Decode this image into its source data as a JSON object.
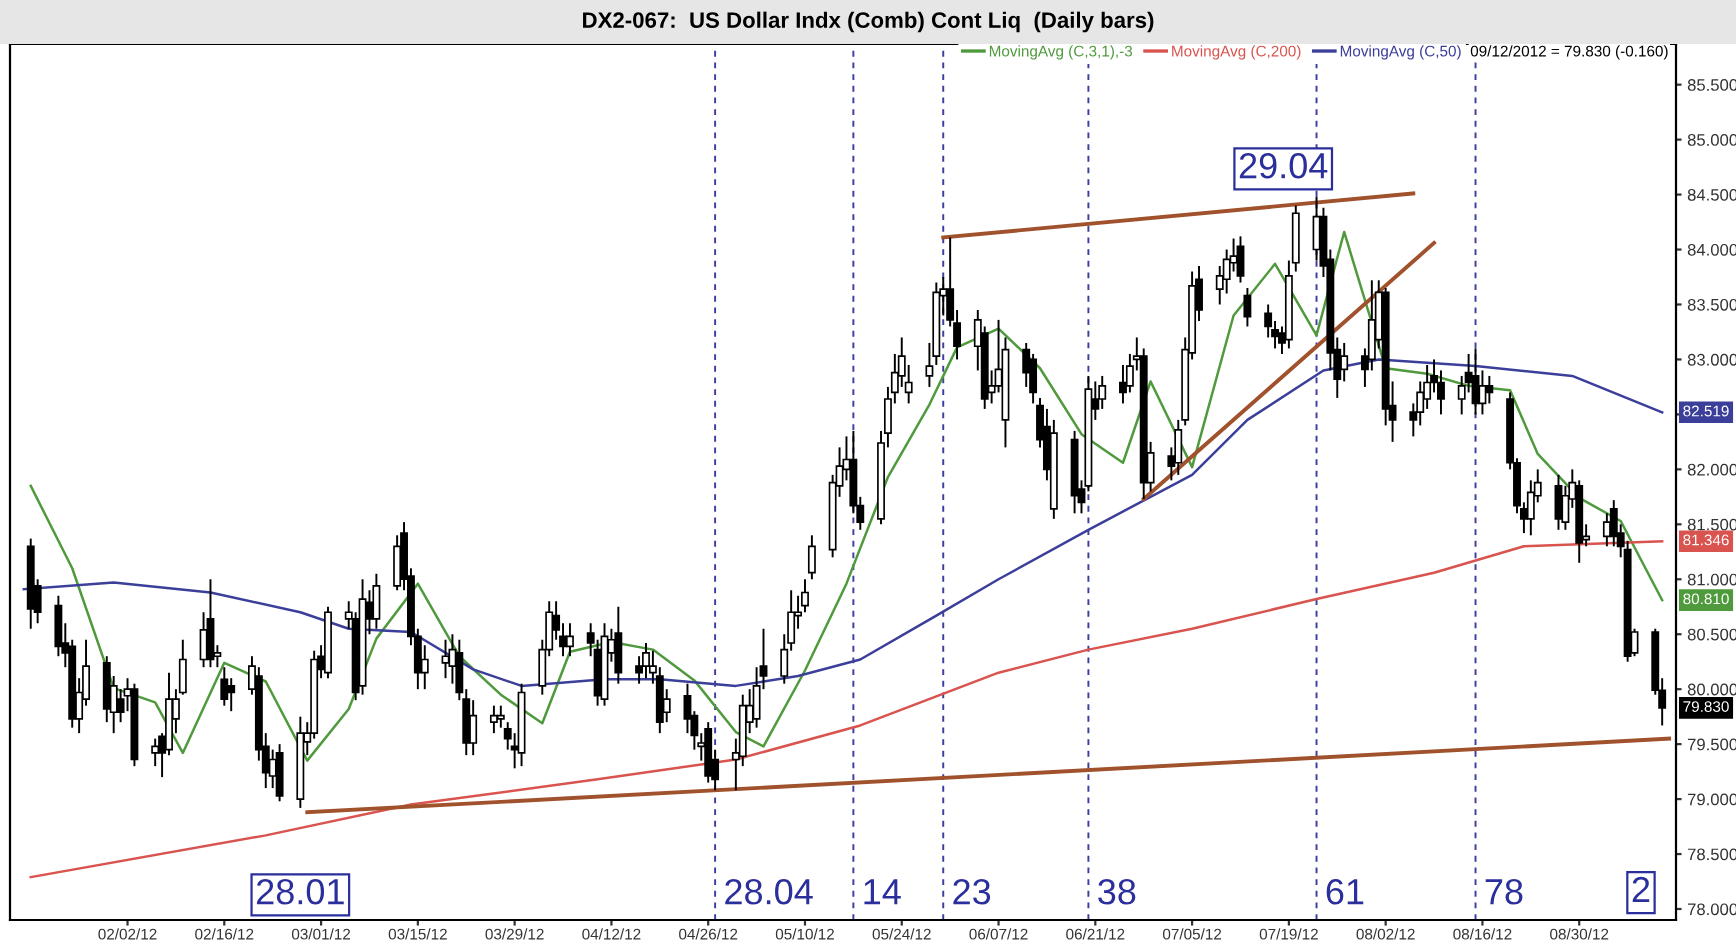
{
  "chart_data": {
    "type": "candlestick",
    "title": "DX2-067:  US Dollar Indx (Comb) Cont Liq  (Daily bars)",
    "x": [
      "2012-01-19",
      "2012-01-20",
      "2012-01-23",
      "2012-01-24",
      "2012-01-25",
      "2012-01-26",
      "2012-01-27",
      "2012-01-30",
      "2012-01-31",
      "2012-02-01",
      "2012-02-02",
      "2012-02-03",
      "2012-02-06",
      "2012-02-07",
      "2012-02-08",
      "2012-02-09",
      "2012-02-10",
      "2012-02-13",
      "2012-02-14",
      "2012-02-15",
      "2012-02-16",
      "2012-02-17",
      "2012-02-20",
      "2012-02-21",
      "2012-02-22",
      "2012-02-23",
      "2012-02-24",
      "2012-02-27",
      "2012-02-28",
      "2012-02-29",
      "2012-03-01",
      "2012-03-02",
      "2012-03-05",
      "2012-03-06",
      "2012-03-07",
      "2012-03-08",
      "2012-03-09",
      "2012-03-12",
      "2012-03-13",
      "2012-03-14",
      "2012-03-15",
      "2012-03-16",
      "2012-03-19",
      "2012-03-20",
      "2012-03-21",
      "2012-03-22",
      "2012-03-23",
      "2012-03-26",
      "2012-03-27",
      "2012-03-28",
      "2012-03-29",
      "2012-03-30",
      "2012-04-02",
      "2012-04-03",
      "2012-04-04",
      "2012-04-05",
      "2012-04-06",
      "2012-04-09",
      "2012-04-10",
      "2012-04-11",
      "2012-04-12",
      "2012-04-13",
      "2012-04-16",
      "2012-04-17",
      "2012-04-18",
      "2012-04-19",
      "2012-04-20",
      "2012-04-23",
      "2012-04-24",
      "2012-04-25",
      "2012-04-26",
      "2012-04-27",
      "2012-04-30",
      "2012-05-01",
      "2012-05-02",
      "2012-05-03",
      "2012-05-04",
      "2012-05-07",
      "2012-05-08",
      "2012-05-09",
      "2012-05-10",
      "2012-05-11",
      "2012-05-14",
      "2012-05-15",
      "2012-05-16",
      "2012-05-17",
      "2012-05-18",
      "2012-05-21",
      "2012-05-22",
      "2012-05-23",
      "2012-05-24",
      "2012-05-25",
      "2012-05-28",
      "2012-05-29",
      "2012-05-30",
      "2012-05-31",
      "2012-06-01",
      "2012-06-04",
      "2012-06-05",
      "2012-06-06",
      "2012-06-07",
      "2012-06-08",
      "2012-06-11",
      "2012-06-12",
      "2012-06-13",
      "2012-06-14",
      "2012-06-15",
      "2012-06-18",
      "2012-06-19",
      "2012-06-20",
      "2012-06-21",
      "2012-06-22",
      "2012-06-25",
      "2012-06-26",
      "2012-06-27",
      "2012-06-28",
      "2012-06-29",
      "2012-07-02",
      "2012-07-03",
      "2012-07-04",
      "2012-07-05",
      "2012-07-06",
      "2012-07-09",
      "2012-07-10",
      "2012-07-11",
      "2012-07-12",
      "2012-07-13",
      "2012-07-16",
      "2012-07-17",
      "2012-07-18",
      "2012-07-19",
      "2012-07-20",
      "2012-07-23",
      "2012-07-24",
      "2012-07-25",
      "2012-07-26",
      "2012-07-27",
      "2012-07-30",
      "2012-07-31",
      "2012-08-01",
      "2012-08-02",
      "2012-08-03",
      "2012-08-06",
      "2012-08-07",
      "2012-08-08",
      "2012-08-09",
      "2012-08-10",
      "2012-08-13",
      "2012-08-14",
      "2012-08-15",
      "2012-08-16",
      "2012-08-17",
      "2012-08-20",
      "2012-08-21",
      "2012-08-22",
      "2012-08-23",
      "2012-08-24",
      "2012-08-27",
      "2012-08-28",
      "2012-08-29",
      "2012-08-30",
      "2012-08-31",
      "2012-09-03",
      "2012-09-04",
      "2012-09-05",
      "2012-09-06",
      "2012-09-07",
      "2012-09-10",
      "2012-09-11"
    ],
    "ohlc": [
      [
        81.3,
        81.37,
        80.55,
        80.73
      ],
      [
        80.94,
        81.0,
        80.6,
        80.7
      ],
      [
        80.76,
        80.85,
        80.3,
        80.39
      ],
      [
        80.42,
        80.6,
        80.2,
        80.33
      ],
      [
        80.39,
        80.45,
        79.65,
        79.73
      ],
      [
        79.73,
        80.1,
        79.6,
        79.97
      ],
      [
        79.91,
        80.45,
        79.85,
        80.21
      ],
      [
        80.24,
        80.3,
        79.7,
        79.82
      ],
      [
        79.79,
        80.12,
        79.6,
        80.03
      ],
      [
        79.91,
        80.0,
        79.7,
        79.79
      ],
      [
        79.94,
        80.1,
        79.8,
        80.0
      ],
      [
        80.0,
        80.05,
        79.3,
        79.36
      ],
      [
        79.42,
        79.55,
        79.3,
        79.48
      ],
      [
        79.57,
        79.6,
        79.2,
        79.42
      ],
      [
        79.45,
        80.15,
        79.4,
        79.91
      ],
      [
        79.73,
        80.0,
        79.6,
        79.91
      ],
      [
        79.97,
        80.45,
        79.95,
        80.27
      ],
      [
        80.27,
        80.7,
        80.2,
        80.54
      ],
      [
        80.64,
        81.0,
        80.2,
        80.27
      ],
      [
        80.3,
        80.4,
        80.2,
        80.33
      ],
      [
        80.09,
        80.2,
        79.85,
        79.91
      ],
      [
        80.03,
        80.1,
        79.8,
        79.97
      ],
      [
        80.0,
        80.3,
        79.95,
        80.21
      ],
      [
        80.12,
        80.2,
        79.35,
        79.45
      ],
      [
        79.48,
        79.6,
        79.1,
        79.24
      ],
      [
        79.21,
        79.45,
        79.1,
        79.36
      ],
      [
        79.42,
        79.5,
        78.98,
        79.03
      ],
      [
        79.0,
        79.75,
        78.92,
        79.6
      ],
      [
        79.52,
        79.7,
        79.4,
        79.6
      ],
      [
        79.6,
        80.35,
        79.55,
        80.27
      ],
      [
        80.3,
        80.4,
        80.1,
        80.18
      ],
      [
        80.15,
        80.75,
        80.1,
        80.7
      ],
      [
        80.64,
        80.8,
        80.55,
        80.7
      ],
      [
        80.64,
        80.7,
        79.9,
        79.97
      ],
      [
        80.03,
        81.0,
        79.95,
        80.82
      ],
      [
        80.79,
        80.9,
        80.5,
        80.64
      ],
      [
        80.64,
        81.05,
        80.55,
        80.94
      ],
      [
        80.94,
        81.4,
        80.9,
        81.3
      ],
      [
        81.42,
        81.52,
        80.9,
        81.0
      ],
      [
        81.03,
        81.1,
        80.4,
        80.48
      ],
      [
        80.48,
        80.55,
        80.0,
        80.15
      ],
      [
        80.15,
        80.4,
        80.0,
        80.27
      ],
      [
        80.24,
        80.45,
        80.1,
        80.3
      ],
      [
        80.21,
        80.5,
        80.05,
        80.36
      ],
      [
        80.33,
        80.45,
        79.9,
        79.97
      ],
      [
        79.91,
        80.0,
        79.4,
        79.51
      ],
      [
        79.51,
        79.9,
        79.4,
        79.76
      ],
      [
        79.7,
        79.85,
        79.6,
        79.76
      ],
      [
        79.73,
        79.85,
        79.65,
        79.76
      ],
      [
        79.64,
        79.7,
        79.45,
        79.55
      ],
      [
        79.48,
        79.6,
        79.28,
        79.45
      ],
      [
        79.42,
        80.05,
        79.3,
        79.97
      ],
      [
        80.03,
        80.45,
        79.95,
        80.36
      ],
      [
        80.36,
        80.8,
        80.3,
        80.7
      ],
      [
        80.67,
        80.8,
        80.45,
        80.54
      ],
      [
        80.48,
        80.6,
        80.3,
        80.39
      ],
      [
        80.39,
        80.6,
        80.3,
        80.48
      ],
      [
        80.51,
        80.6,
        80.3,
        80.42
      ],
      [
        80.36,
        80.45,
        79.85,
        79.94
      ],
      [
        79.91,
        80.6,
        79.85,
        80.48
      ],
      [
        80.33,
        80.55,
        80.25,
        80.45
      ],
      [
        80.51,
        80.75,
        80.05,
        80.15
      ],
      [
        80.21,
        80.3,
        80.05,
        80.15
      ],
      [
        80.21,
        80.42,
        80.1,
        80.33
      ],
      [
        80.15,
        80.35,
        80.05,
        80.21
      ],
      [
        80.12,
        80.2,
        79.6,
        79.7
      ],
      [
        79.79,
        80.0,
        79.7,
        79.91
      ],
      [
        79.94,
        80.05,
        79.6,
        79.73
      ],
      [
        79.76,
        79.8,
        79.45,
        79.58
      ],
      [
        79.48,
        79.6,
        79.35,
        79.51
      ],
      [
        79.64,
        79.7,
        79.15,
        79.21
      ],
      [
        79.36,
        79.45,
        79.08,
        79.18
      ],
      [
        79.36,
        79.55,
        79.08,
        79.42
      ],
      [
        79.39,
        79.95,
        79.3,
        79.85
      ],
      [
        79.7,
        80.0,
        79.6,
        79.85
      ],
      [
        79.73,
        80.2,
        79.65,
        80.03
      ],
      [
        80.21,
        80.55,
        80.0,
        80.12
      ],
      [
        80.12,
        80.5,
        80.05,
        80.36
      ],
      [
        80.42,
        80.9,
        80.35,
        80.7
      ],
      [
        80.67,
        80.85,
        80.55,
        80.7
      ],
      [
        80.76,
        81.0,
        80.7,
        80.88
      ],
      [
        81.06,
        81.4,
        81.0,
        81.3
      ],
      [
        81.27,
        81.95,
        81.2,
        81.88
      ],
      [
        81.85,
        82.2,
        81.75,
        82.03
      ],
      [
        82.0,
        82.3,
        81.9,
        82.09
      ],
      [
        82.09,
        82.35,
        81.6,
        81.67
      ],
      [
        81.67,
        81.75,
        81.45,
        81.52
      ],
      [
        81.55,
        82.35,
        81.5,
        82.24
      ],
      [
        82.33,
        82.75,
        82.2,
        82.64
      ],
      [
        82.7,
        83.05,
        82.6,
        82.88
      ],
      [
        82.85,
        83.2,
        82.75,
        83.03
      ],
      [
        82.7,
        82.95,
        82.6,
        82.79
      ],
      [
        82.85,
        83.15,
        82.75,
        82.94
      ],
      [
        83.03,
        83.7,
        82.95,
        83.61
      ],
      [
        83.58,
        83.75,
        83.4,
        83.64
      ],
      [
        83.64,
        84.11,
        83.3,
        83.36
      ],
      [
        83.33,
        83.45,
        83.0,
        83.12
      ],
      [
        83.12,
        83.45,
        82.9,
        83.36
      ],
      [
        83.24,
        83.3,
        82.55,
        82.64
      ],
      [
        82.7,
        82.9,
        82.6,
        82.76
      ],
      [
        82.76,
        83.36,
        82.7,
        82.91
      ],
      [
        82.45,
        83.2,
        82.2,
        83.09
      ],
      [
        83.09,
        83.15,
        82.75,
        82.88
      ],
      [
        83.0,
        83.05,
        82.6,
        82.7
      ],
      [
        82.58,
        82.65,
        82.2,
        82.27
      ],
      [
        82.39,
        82.55,
        81.9,
        82.0
      ],
      [
        81.64,
        82.45,
        81.55,
        82.33
      ],
      [
        82.27,
        82.35,
        81.6,
        81.76
      ],
      [
        81.82,
        81.9,
        81.6,
        81.7
      ],
      [
        81.85,
        82.85,
        81.8,
        82.73
      ],
      [
        82.64,
        82.8,
        82.45,
        82.55
      ],
      [
        82.64,
        82.85,
        82.55,
        82.76
      ],
      [
        82.79,
        82.95,
        82.6,
        82.7
      ],
      [
        82.76,
        83.05,
        82.7,
        82.94
      ],
      [
        83.0,
        83.2,
        82.9,
        83.03
      ],
      [
        83.03,
        83.1,
        81.73,
        81.88
      ],
      [
        81.88,
        82.25,
        81.8,
        82.15
      ],
      [
        82.12,
        82.2,
        81.9,
        82.03
      ],
      [
        82.06,
        82.45,
        81.95,
        82.36
      ],
      [
        82.45,
        83.2,
        82.4,
        83.09
      ],
      [
        83.06,
        83.8,
        83.0,
        83.67
      ],
      [
        83.73,
        83.85,
        83.35,
        83.45
      ],
      [
        83.64,
        83.85,
        83.5,
        83.76
      ],
      [
        83.73,
        84.0,
        83.6,
        83.91
      ],
      [
        83.88,
        84.1,
        83.8,
        83.94
      ],
      [
        84.03,
        84.12,
        83.7,
        83.76
      ],
      [
        83.58,
        83.65,
        83.3,
        83.39
      ],
      [
        83.42,
        83.5,
        83.2,
        83.3
      ],
      [
        83.27,
        83.35,
        83.1,
        83.21
      ],
      [
        83.24,
        83.3,
        83.05,
        83.15
      ],
      [
        83.18,
        83.9,
        83.1,
        83.76
      ],
      [
        83.88,
        84.4,
        83.8,
        84.33
      ],
      [
        84.0,
        84.48,
        83.9,
        84.3
      ],
      [
        84.3,
        84.38,
        83.75,
        83.85
      ],
      [
        83.91,
        84.0,
        82.9,
        83.06
      ],
      [
        83.09,
        83.2,
        82.65,
        82.82
      ],
      [
        82.91,
        83.15,
        82.8,
        83.03
      ],
      [
        83.03,
        83.1,
        82.75,
        82.91
      ],
      [
        83.0,
        83.72,
        82.9,
        83.36
      ],
      [
        83.18,
        83.72,
        83.1,
        83.61
      ],
      [
        83.61,
        83.65,
        82.4,
        82.55
      ],
      [
        82.58,
        82.8,
        82.25,
        82.45
      ],
      [
        82.52,
        82.6,
        82.3,
        82.45
      ],
      [
        82.52,
        82.8,
        82.4,
        82.7
      ],
      [
        82.64,
        82.95,
        82.55,
        82.79
      ],
      [
        82.85,
        83.0,
        82.7,
        82.79
      ],
      [
        82.79,
        82.9,
        82.5,
        82.64
      ],
      [
        82.64,
        82.85,
        82.5,
        82.76
      ],
      [
        82.88,
        83.05,
        82.7,
        82.79
      ],
      [
        82.85,
        83.1,
        82.5,
        82.6
      ],
      [
        82.6,
        82.9,
        82.5,
        82.76
      ],
      [
        82.76,
        82.85,
        82.6,
        82.7
      ],
      [
        82.64,
        82.7,
        82.0,
        82.06
      ],
      [
        82.06,
        82.1,
        81.6,
        81.67
      ],
      [
        81.64,
        81.7,
        81.42,
        81.55
      ],
      [
        81.55,
        81.9,
        81.4,
        81.79
      ],
      [
        81.76,
        82.0,
        81.7,
        81.88
      ],
      [
        81.85,
        81.95,
        81.45,
        81.55
      ],
      [
        81.52,
        81.85,
        81.45,
        81.76
      ],
      [
        81.73,
        82.0,
        81.65,
        81.88
      ],
      [
        81.85,
        81.9,
        81.15,
        81.33
      ],
      [
        81.36,
        81.5,
        81.3,
        81.39
      ],
      [
        81.39,
        81.6,
        81.3,
        81.52
      ],
      [
        81.64,
        81.72,
        81.3,
        81.39
      ],
      [
        81.42,
        81.5,
        81.2,
        81.3
      ],
      [
        81.27,
        81.35,
        80.25,
        80.3
      ],
      [
        80.33,
        80.55,
        80.3,
        80.52
      ],
      [
        80.52,
        80.55,
        79.95,
        79.99
      ],
      [
        79.99,
        80.1,
        79.67,
        79.83
      ]
    ],
    "series": [
      {
        "type": "line",
        "name": "MovingAvg (C,3,1),-3",
        "color": "#4f9a3c",
        "x": [
          "2012-01-19",
          "2012-01-25",
          "2012-01-31",
          "2012-02-06",
          "2012-02-10",
          "2012-02-16",
          "2012-02-22",
          "2012-02-28",
          "2012-03-05",
          "2012-03-09",
          "2012-03-15",
          "2012-03-21",
          "2012-03-27",
          "2012-04-02",
          "2012-04-06",
          "2012-04-12",
          "2012-04-18",
          "2012-04-24",
          "2012-04-30",
          "2012-05-04",
          "2012-05-10",
          "2012-05-16",
          "2012-05-22",
          "2012-05-28",
          "2012-06-01",
          "2012-06-07",
          "2012-06-13",
          "2012-06-19",
          "2012-06-25",
          "2012-06-29",
          "2012-07-05",
          "2012-07-11",
          "2012-07-17",
          "2012-07-23",
          "2012-07-27",
          "2012-08-02",
          "2012-08-08",
          "2012-08-14",
          "2012-08-20",
          "2012-08-24",
          "2012-08-30",
          "2012-09-05",
          "2012-09-11"
        ],
        "values": [
          81.85,
          81.1,
          80.01,
          79.88,
          79.42,
          80.24,
          80.07,
          79.35,
          79.82,
          80.46,
          80.96,
          80.3,
          79.95,
          79.69,
          80.34,
          80.43,
          80.36,
          80.08,
          79.61,
          79.48,
          80.17,
          80.96,
          81.93,
          82.59,
          83.11,
          83.28,
          82.92,
          82.32,
          82.06,
          82.8,
          82.02,
          83.4,
          83.87,
          83.22,
          84.16,
          82.92,
          82.87,
          82.76,
          82.72,
          82.14,
          81.74,
          81.53,
          80.81
        ],
        "value_labels": [
          null,
          null,
          null,
          null,
          null,
          null,
          null,
          null,
          null,
          null,
          null,
          null,
          null,
          null,
          null,
          null,
          null,
          null,
          null,
          null,
          null,
          null,
          null,
          null,
          null,
          null,
          null,
          null,
          null,
          null,
          null,
          null,
          null,
          null,
          null,
          null,
          null,
          null,
          null,
          null,
          null,
          null,
          "80.810"
        ]
      },
      {
        "type": "line",
        "name": "MovingAvg (C,200)",
        "color": "#d9534f",
        "x": [
          "2012-01-19",
          "2012-02-22",
          "2012-03-14",
          "2012-04-10",
          "2012-04-30",
          "2012-05-18",
          "2012-06-07",
          "2012-06-20",
          "2012-07-05",
          "2012-07-23",
          "2012-08-09",
          "2012-08-22",
          "2012-09-11"
        ],
        "values": [
          78.29,
          78.67,
          78.95,
          79.18,
          79.36,
          79.67,
          80.15,
          80.36,
          80.55,
          80.82,
          81.06,
          81.3,
          81.346
        ],
        "value_labels": [
          null,
          null,
          null,
          null,
          null,
          null,
          null,
          null,
          null,
          null,
          null,
          null,
          "81.346"
        ]
      },
      {
        "type": "line",
        "name": "MovingAvg (C,50)",
        "color": "#3b3f9a",
        "x": [
          "2012-01-18",
          "2012-01-31",
          "2012-02-14",
          "2012-02-27",
          "2012-03-05",
          "2012-03-14",
          "2012-03-23",
          "2012-03-30",
          "2012-04-11",
          "2012-04-19",
          "2012-04-30",
          "2012-05-09",
          "2012-05-18",
          "2012-05-29",
          "2012-06-07",
          "2012-06-20",
          "2012-07-05",
          "2012-07-13",
          "2012-07-24",
          "2012-08-01",
          "2012-08-15",
          "2012-08-29",
          "2012-09-11"
        ],
        "values": [
          80.91,
          80.97,
          80.88,
          80.7,
          80.55,
          80.52,
          80.18,
          80.03,
          80.09,
          80.09,
          80.03,
          80.12,
          80.27,
          80.67,
          81.0,
          81.45,
          81.95,
          82.45,
          82.9,
          83.0,
          82.94,
          82.85,
          82.519
        ],
        "value_labels": [
          null,
          null,
          null,
          null,
          null,
          null,
          null,
          null,
          null,
          null,
          null,
          null,
          null,
          null,
          null,
          null,
          null,
          null,
          null,
          null,
          null,
          null,
          "82.519"
        ]
      },
      {
        "type": "line",
        "color": "#a0522d",
        "x": [
          "2012-02-28",
          "2012-09-12"
        ],
        "values": [
          78.88,
          79.55
        ]
      },
      {
        "type": "line",
        "color": "#a0522d",
        "x": [
          "2012-05-30",
          "2012-08-06"
        ],
        "values": [
          84.11,
          84.51
        ]
      },
      {
        "type": "line",
        "color": "#a0522d",
        "x": [
          "2012-06-28",
          "2012-08-09"
        ],
        "values": [
          81.73,
          84.06
        ]
      }
    ],
    "ref_lines": [
      {
        "axis": "x",
        "value": "2012-04-27",
        "color": "#3b3fa0",
        "line_style": "dashed",
        "label": "28.04"
      },
      {
        "axis": "x",
        "value": "2012-05-17",
        "color": "#3b3fa0",
        "line_style": "dashed",
        "label": "14"
      },
      {
        "axis": "x",
        "value": "2012-05-30",
        "color": "#3b3fa0",
        "line_style": "dashed",
        "label": "23"
      },
      {
        "axis": "x",
        "value": "2012-06-20",
        "color": "#3b3fa0",
        "line_style": "dashed",
        "label": "38"
      },
      {
        "axis": "x",
        "value": "2012-07-23",
        "color": "#3b3fa0",
        "line_style": "dashed",
        "label": "61"
      },
      {
        "axis": "x",
        "value": "2012-08-15",
        "color": "#3b3fa0",
        "line_style": "dashed",
        "label": "78"
      }
    ],
    "annotations": [
      "09/12/2012 = 79.830 (-0.160)",
      {
        "text": "79.830",
        "x": "2012-09-11",
        "y": 79.83
      },
      {
        "text": "28.01",
        "x": "2012-02-27",
        "y": 78.92
      },
      "2",
      {
        "text": "29.04",
        "x": "2012-07-23",
        "y": 84.48
      }
    ],
    "xlim": [
      "2012-01-16",
      "2012-09-13"
    ],
    "xticks": [
      {
        "value": "2012-02-02",
        "label": "02/02/12"
      },
      {
        "value": "2012-02-16",
        "label": "02/16/12"
      },
      {
        "value": "2012-03-01",
        "label": "03/01/12"
      },
      {
        "value": "2012-03-15",
        "label": "03/15/12"
      },
      {
        "value": "2012-03-29",
        "label": "03/29/12"
      },
      {
        "value": "2012-04-12",
        "label": "04/12/12"
      },
      {
        "value": "2012-04-26",
        "label": "04/26/12"
      },
      {
        "value": "2012-05-10",
        "label": "05/10/12"
      },
      {
        "value": "2012-05-24",
        "label": "05/24/12"
      },
      {
        "value": "2012-06-07",
        "label": "06/07/12"
      },
      {
        "value": "2012-06-21",
        "label": "06/21/12"
      },
      {
        "value": "2012-07-05",
        "label": "07/05/12"
      },
      {
        "value": "2012-07-19",
        "label": "07/19/12"
      },
      {
        "value": "2012-08-02",
        "label": "08/02/12"
      },
      {
        "value": "2012-08-16",
        "label": "08/16/12"
      },
      {
        "value": "2012-08-30",
        "label": "08/30/12"
      }
    ],
    "ylim": [
      77.9,
      85.87
    ],
    "yticks": [
      {
        "value": 78,
        "label": "78.000"
      },
      {
        "value": 78.5,
        "label": "78.500"
      },
      {
        "value": 79,
        "label": "79.000"
      },
      {
        "value": 79.5,
        "label": "79.500"
      },
      {
        "value": 80,
        "label": "80.000"
      },
      {
        "value": 80.5,
        "label": "80.500"
      },
      {
        "value": 81,
        "label": "81.000"
      },
      {
        "value": 81.5,
        "label": "81.500"
      },
      {
        "value": 82,
        "label": "82.000"
      },
      {
        "value": 82.5,
        "label": null
      },
      {
        "value": 83,
        "label": "83.000"
      },
      {
        "value": 83.5,
        "label": "83.500"
      },
      {
        "value": 84,
        "label": "84.000"
      },
      {
        "value": 84.5,
        "label": "84.500"
      },
      {
        "value": 85,
        "label": "85.000"
      },
      {
        "value": 85.5,
        "label": "85.500"
      }
    ],
    "legend": "top right"
  }
}
